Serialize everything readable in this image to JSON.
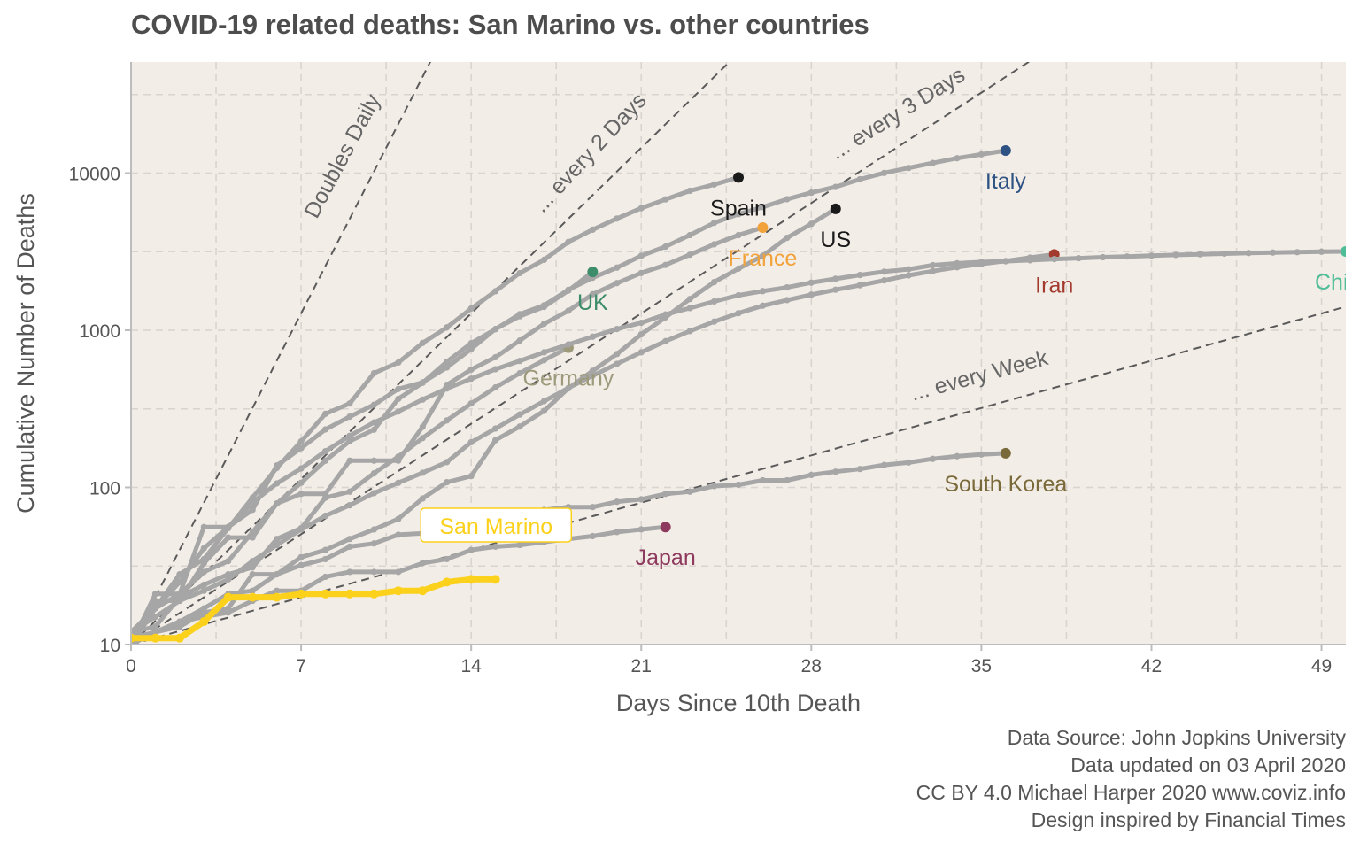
{
  "chart_data": {
    "type": "line",
    "title": "COVID-19 related deaths: San Marino vs. other countries",
    "xlabel": "Days Since 10th Death",
    "ylabel": "Cumulative Number of Deaths",
    "y_scale": "log10",
    "xlim": [
      0,
      50
    ],
    "ylim": [
      10,
      50000
    ],
    "x_ticks": [
      0,
      7,
      14,
      21,
      28,
      35,
      42,
      49
    ],
    "y_ticks": [
      10,
      100,
      1000,
      10000
    ],
    "background": "#F3EDE7",
    "grid": true,
    "reference_lines": [
      {
        "label": "Doubles Daily",
        "doubling_days": 1
      },
      {
        "label": "... every 2 Days",
        "doubling_days": 2
      },
      {
        "label": "... every 3 Days",
        "doubling_days": 3
      },
      {
        "label": "... every  Week",
        "doubling_days": 7
      }
    ],
    "highlight": "San Marino",
    "series": [
      {
        "name": "Italy",
        "color": "#2E5283",
        "x": [
          0,
          1,
          2,
          3,
          4,
          5,
          6,
          7,
          8,
          9,
          10,
          11,
          12,
          13,
          14,
          15,
          16,
          17,
          18,
          19,
          20,
          21,
          22,
          23,
          24,
          25,
          26,
          27,
          28,
          29,
          30,
          31,
          32,
          33,
          34,
          35,
          36
        ],
        "y": [
          12,
          17,
          21,
          29,
          34,
          52,
          79,
          107,
          148,
          197,
          233,
          366,
          463,
          631,
          827,
          1016,
          1266,
          1441,
          1809,
          2158,
          2503,
          2978,
          3405,
          4032,
          4825,
          5476,
          6077,
          6820,
          7503,
          8165,
          9134,
          10023,
          10779,
          11591,
          12428,
          13155,
          13915
        ]
      },
      {
        "name": "Spain",
        "color": "#1A1A1A",
        "x": [
          0,
          1,
          2,
          3,
          4,
          5,
          6,
          7,
          8,
          9,
          10,
          11,
          12,
          13,
          14,
          15,
          16,
          17,
          18,
          19,
          20,
          21,
          22,
          23,
          24,
          25
        ],
        "y": [
          10,
          17,
          28,
          35,
          55,
          86,
          133,
          196,
          294,
          342,
          533,
          623,
          830,
          1043,
          1375,
          1772,
          2311,
          2808,
          3647,
          4365,
          5138,
          5982,
          6803,
          7716,
          8464,
          9387
        ]
      },
      {
        "name": "US",
        "color": "#1A1A1A",
        "x": [
          0,
          1,
          2,
          3,
          4,
          5,
          6,
          7,
          8,
          9,
          10,
          11,
          12,
          13,
          14,
          15,
          16,
          17,
          18,
          19,
          20,
          21,
          22,
          23,
          24,
          25,
          26,
          27,
          28,
          29
        ],
        "y": [
          11,
          12,
          14,
          17,
          21,
          22,
          28,
          36,
          40,
          47,
          54,
          63,
          85,
          108,
          118,
          200,
          244,
          307,
          427,
          552,
          706,
          942,
          1209,
          1581,
          2026,
          2467,
          2978,
          3873,
          4757,
          5926
        ]
      },
      {
        "name": "France",
        "color": "#F2A23A",
        "x": [
          0,
          1,
          2,
          3,
          4,
          5,
          6,
          7,
          8,
          9,
          10,
          11,
          12,
          13,
          14,
          15,
          16,
          17,
          18,
          19,
          20,
          21,
          22,
          23,
          24,
          25,
          26
        ],
        "y": [
          11,
          19,
          19,
          33,
          48,
          48,
          79,
          91,
          91,
          148,
          148,
          148,
          243,
          450,
          562,
          674,
          860,
          1100,
          1331,
          1696,
          1995,
          2314,
          2606,
          3024,
          3523,
          4032,
          4503
        ]
      },
      {
        "name": "UK",
        "color": "#3D8C6A",
        "x": [
          0,
          1,
          2,
          3,
          4,
          5,
          6,
          7,
          8,
          9,
          10,
          11,
          12,
          13,
          14,
          15,
          16,
          17,
          18,
          19
        ],
        "y": [
          10,
          21,
          21,
          56,
          56,
          72,
          138,
          178,
          234,
          282,
          336,
          423,
          466,
          580,
          761,
          1019,
          1228,
          1408,
          1789,
          2352
        ]
      },
      {
        "name": "Germany",
        "color": "#9C9A7A",
        "x": [
          0,
          1,
          2,
          3,
          4,
          5,
          6,
          7,
          8,
          9,
          10,
          11,
          12,
          13,
          14,
          15,
          16,
          17,
          18
        ],
        "y": [
          12,
          13,
          20,
          24,
          28,
          31,
          47,
          55,
          86,
          94,
          123,
          157,
          206,
          267,
          342,
          433,
          533,
          645,
          775
        ]
      },
      {
        "name": "Iran",
        "color": "#A33A2E",
        "x": [
          0,
          1,
          2,
          3,
          4,
          5,
          6,
          7,
          8,
          9,
          10,
          11,
          12,
          13,
          14,
          15,
          16,
          17,
          18,
          19,
          20,
          21,
          22,
          23,
          24,
          25,
          26,
          27,
          28,
          29,
          30,
          31,
          32,
          33,
          34,
          35,
          36,
          37,
          38
        ],
        "y": [
          12,
          15,
          19,
          22,
          26,
          34,
          43,
          54,
          66,
          77,
          92,
          107,
          124,
          145,
          194,
          237,
          291,
          354,
          429,
          514,
          611,
          724,
          853,
          988,
          1135,
          1284,
          1433,
          1556,
          1685,
          1812,
          1934,
          2077,
          2234,
          2378,
          2517,
          2640,
          2757,
          2898,
          3036
        ]
      },
      {
        "name": "China",
        "color": "#4FBE98",
        "x": [
          0,
          1,
          2,
          3,
          4,
          5,
          6,
          7,
          8,
          9,
          10,
          11,
          12,
          13,
          14,
          15,
          16,
          17,
          18,
          19,
          20,
          21,
          22,
          23,
          24,
          25,
          26,
          27,
          28,
          29,
          30,
          31,
          32,
          33,
          34,
          35,
          36,
          37,
          38,
          39,
          40,
          41,
          42,
          43,
          44,
          45,
          46,
          47,
          48,
          49,
          50
        ],
        "y": [
          10,
          17,
          25,
          41,
          56,
          80,
          106,
          132,
          170,
          213,
          259,
          304,
          362,
          426,
          492,
          565,
          638,
          724,
          813,
          910,
          1018,
          1115,
          1261,
          1383,
          1526,
          1669,
          1775,
          1873,
          2009,
          2126,
          2247,
          2360,
          2445,
          2595,
          2666,
          2718,
          2747,
          2790,
          2838,
          2873,
          2915,
          2946,
          2983,
          3015,
          3044,
          3073,
          3100,
          3123,
          3139,
          3161,
          3172
        ]
      },
      {
        "name": "South Korea",
        "color": "#7A6A3A",
        "x": [
          0,
          1,
          2,
          3,
          4,
          5,
          6,
          7,
          8,
          9,
          10,
          11,
          12,
          13,
          14,
          15,
          16,
          17,
          18,
          19,
          20,
          21,
          22,
          23,
          24,
          25,
          26,
          27,
          28,
          29,
          30,
          31,
          32,
          33,
          34,
          35,
          36
        ],
        "y": [
          11,
          12,
          13,
          16,
          17,
          28,
          28,
          32,
          35,
          42,
          44,
          50,
          51,
          54,
          60,
          66,
          67,
          72,
          75,
          75,
          81,
          84,
          91,
          94,
          102,
          104,
          111,
          111,
          120,
          126,
          131,
          139,
          144,
          152,
          158,
          162,
          165
        ]
      },
      {
        "name": "Japan",
        "color": "#8E3A5E",
        "x": [
          0,
          1,
          2,
          3,
          4,
          5,
          6,
          7,
          8,
          9,
          10,
          11,
          12,
          13,
          14,
          15,
          16,
          17,
          18,
          19,
          20,
          21,
          22
        ],
        "y": [
          10,
          12,
          14,
          15,
          16,
          19,
          22,
          22,
          27,
          29,
          29,
          29,
          33,
          35,
          40,
          42,
          43,
          45,
          47,
          49,
          52,
          54,
          56
        ]
      },
      {
        "name": "San Marino",
        "color": "#FBD11C",
        "x": [
          0,
          1,
          2,
          3,
          4,
          5,
          6,
          7,
          8,
          9,
          10,
          11,
          12,
          13,
          14,
          15
        ],
        "y": [
          11,
          11,
          11,
          14,
          20,
          20,
          20,
          21,
          21,
          21,
          21,
          22,
          22,
          25,
          26,
          26
        ]
      }
    ]
  },
  "caption": {
    "line1": "Data Source: John Jopkins University",
    "line2": "Data updated on 03 April 2020",
    "line3": "CC BY 4.0 Michael Harper 2020 www.coviz.info",
    "line4": "Design inspired by Financial Times"
  }
}
